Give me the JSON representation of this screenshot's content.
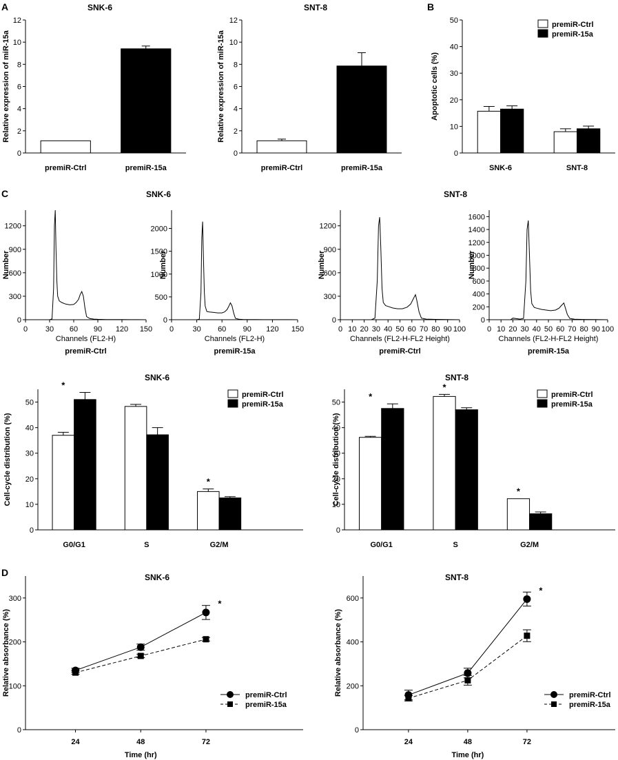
{
  "figure": {
    "panel_letters": [
      "A",
      "B",
      "C",
      "D"
    ],
    "series_colors": {
      "premiR-Ctrl": "#ffffff",
      "premiR-15a": "#000000"
    }
  },
  "chart_data": [
    {
      "id": "A1",
      "type": "bar",
      "title": "SNK-6",
      "ylabel": "Relative expression of miR-15a",
      "xlabel": "",
      "ylim": [
        0,
        12
      ],
      "yticks": [
        0,
        2,
        4,
        6,
        8,
        10,
        12
      ],
      "categories": [
        "premiR-Ctrl",
        "premiR-15a"
      ],
      "values": [
        1.1,
        9.4
      ],
      "errors": [
        0,
        0.25
      ],
      "colors": [
        "#ffffff",
        "#000000"
      ]
    },
    {
      "id": "A2",
      "type": "bar",
      "title": "SNT-8",
      "ylabel": "Relative expression of miR-15a",
      "xlabel": "",
      "ylim": [
        0,
        12
      ],
      "yticks": [
        0,
        2,
        4,
        6,
        8,
        10,
        12
      ],
      "categories": [
        "premiR-Ctrl",
        "premiR-15a"
      ],
      "values": [
        1.1,
        7.85
      ],
      "errors": [
        0.15,
        1.2
      ],
      "colors": [
        "#ffffff",
        "#000000"
      ]
    },
    {
      "id": "B",
      "type": "bar",
      "title": "",
      "ylabel": "Apoptotic cells (%)",
      "xlabel": "",
      "ylim": [
        0,
        50
      ],
      "yticks": [
        0,
        10,
        20,
        30,
        40,
        50
      ],
      "categories": [
        "SNK-6",
        "SNT-8"
      ],
      "series": [
        {
          "name": "premiR-Ctrl",
          "values": [
            15.7,
            8.0
          ],
          "errors": [
            1.8,
            1.1
          ]
        },
        {
          "name": "premiR-15a",
          "values": [
            16.5,
            9.1
          ],
          "errors": [
            1.2,
            1.0
          ]
        }
      ],
      "legend": "top-right"
    },
    {
      "id": "C1",
      "type": "line",
      "group_title": "SNK-6",
      "ylabel": "Number",
      "xlabel": "Channels (FL2-H)",
      "caption": "premiR-Ctrl",
      "xlim": [
        0,
        150
      ],
      "xticks": [
        0,
        30,
        60,
        90,
        120,
        150
      ],
      "ylim": [
        0,
        1400
      ],
      "yticks": [
        0,
        300,
        600,
        900,
        1200
      ],
      "x": [
        30,
        33,
        35,
        36,
        37,
        38,
        39,
        40,
        42,
        45,
        50,
        55,
        60,
        63,
        66,
        68,
        70,
        72,
        74,
        76,
        80,
        85,
        90,
        100,
        110,
        120,
        130,
        140,
        150
      ],
      "y": [
        0,
        10,
        400,
        1200,
        1400,
        900,
        500,
        300,
        240,
        220,
        200,
        190,
        195,
        220,
        260,
        320,
        360,
        300,
        150,
        40,
        15,
        8,
        5,
        3,
        2,
        2,
        1,
        1,
        0
      ]
    },
    {
      "id": "C2",
      "type": "line",
      "group_title": "SNK-6",
      "ylabel": "Number",
      "xlabel": "Channels (FL2-H)",
      "caption": "premiR-15a",
      "xlim": [
        0,
        150
      ],
      "xticks": [
        0,
        30,
        60,
        90,
        120,
        150
      ],
      "ylim": [
        0,
        2400
      ],
      "yticks": [
        0,
        500,
        1000,
        1500,
        2000
      ],
      "x": [
        30,
        33,
        35,
        36,
        37,
        38,
        39,
        40,
        42,
        45,
        50,
        55,
        60,
        63,
        66,
        68,
        70,
        72,
        74,
        76,
        80,
        85,
        90,
        100,
        110,
        120,
        130,
        140,
        150
      ],
      "y": [
        0,
        10,
        600,
        1800,
        2150,
        1300,
        600,
        300,
        180,
        170,
        160,
        150,
        150,
        170,
        220,
        290,
        370,
        300,
        140,
        30,
        12,
        6,
        4,
        3,
        2,
        2,
        1,
        1,
        0
      ]
    },
    {
      "id": "C3",
      "type": "line",
      "group_title": "SNT-8",
      "ylabel": "Number",
      "xlabel": "Channels (FL2-H-FL2 Height)",
      "caption": "premiR-Ctrl",
      "xlim": [
        0,
        100
      ],
      "xticks": [
        0,
        10,
        20,
        30,
        40,
        50,
        60,
        70,
        80,
        90,
        100
      ],
      "ylim": [
        0,
        1400
      ],
      "yticks": [
        0,
        300,
        600,
        900,
        1200
      ],
      "x": [
        26,
        29,
        31,
        32,
        33,
        34,
        35,
        36,
        38,
        40,
        44,
        48,
        52,
        56,
        59,
        61,
        63,
        64,
        66,
        68,
        72,
        80,
        90,
        100
      ],
      "y": [
        0,
        20,
        500,
        1200,
        1310,
        900,
        400,
        220,
        180,
        170,
        150,
        140,
        140,
        160,
        200,
        260,
        320,
        260,
        100,
        20,
        8,
        4,
        2,
        0
      ]
    },
    {
      "id": "C4",
      "type": "line",
      "group_title": "SNT-8",
      "ylabel": "Number",
      "xlabel": "Channels (FL2-H-FL2 Height)",
      "caption": "premiR-15a",
      "xlim": [
        0,
        100
      ],
      "xticks": [
        0,
        10,
        20,
        30,
        40,
        50,
        60,
        70,
        80,
        90,
        100
      ],
      "ylim": [
        0,
        1700
      ],
      "yticks": [
        0,
        200,
        400,
        600,
        800,
        1000,
        1200,
        1400,
        1600
      ],
      "x": [
        18,
        20,
        26,
        29,
        31,
        32,
        33,
        34,
        35,
        36,
        38,
        40,
        44,
        48,
        52,
        56,
        59,
        61,
        63,
        64,
        66,
        68,
        72,
        80,
        90,
        100
      ],
      "y": [
        0,
        25,
        10,
        20,
        600,
        1400,
        1540,
        1000,
        450,
        250,
        190,
        180,
        160,
        150,
        140,
        150,
        180,
        220,
        260,
        200,
        80,
        20,
        8,
        4,
        2,
        0
      ]
    },
    {
      "id": "C5",
      "type": "bar",
      "title": "SNK-6",
      "ylabel": "Cell-cycle distribution (%)",
      "xlabel": "",
      "ylim": [
        0,
        55
      ],
      "yticks": [
        0,
        10,
        20,
        30,
        40,
        50
      ],
      "categories": [
        "G0/G1",
        "S",
        "G2/M"
      ],
      "series": [
        {
          "name": "premiR-Ctrl",
          "values": [
            37.0,
            48.3,
            15.0
          ],
          "errors": [
            1.2,
            0.8,
            1.0
          ]
        },
        {
          "name": "premiR-15a",
          "values": [
            51.0,
            37.2,
            12.5
          ],
          "errors": [
            2.8,
            2.8,
            0.5
          ]
        }
      ],
      "significance": [
        "*",
        "",
        "*"
      ],
      "legend": "top-right"
    },
    {
      "id": "C6",
      "type": "bar",
      "title": "SNT-8",
      "ylabel": "Cell-cycle distribution (%)",
      "xlabel": "",
      "ylim": [
        0,
        55
      ],
      "yticks": [
        0,
        10,
        20,
        30,
        40,
        50
      ],
      "categories": [
        "G0/G1",
        "S",
        "G2/M"
      ],
      "series": [
        {
          "name": "premiR-Ctrl",
          "values": [
            36.2,
            52.2,
            12.2
          ],
          "errors": [
            0.4,
            0.8,
            0
          ]
        },
        {
          "name": "premiR-15a",
          "values": [
            47.5,
            47.0,
            6.3
          ],
          "errors": [
            1.8,
            0.8,
            0.7
          ]
        }
      ],
      "significance": [
        "*",
        "*",
        "*"
      ],
      "legend": "top-right"
    },
    {
      "id": "D1",
      "type": "line",
      "title": "SNK-6",
      "ylabel": "Relative absorbance (%)",
      "xlabel": "Time (hr)",
      "ylim": [
        0,
        350
      ],
      "yticks": [
        0,
        100,
        200,
        300
      ],
      "categories": [
        "24",
        "48",
        "72"
      ],
      "series": [
        {
          "name": "premiR-Ctrl",
          "values": [
            135,
            188,
            267
          ],
          "errors": [
            5,
            7,
            16
          ]
        },
        {
          "name": "premiR-15a",
          "values": [
            130,
            168,
            206
          ],
          "errors": [
            4,
            4,
            4
          ]
        }
      ],
      "significance": [
        "",
        "",
        "*"
      ],
      "legend": "bottom-right"
    },
    {
      "id": "D2",
      "type": "line",
      "title": "SNT-8",
      "ylabel": "Relative absorbance (%)",
      "xlabel": "Time (hr)",
      "ylim": [
        0,
        700
      ],
      "yticks": [
        0,
        200,
        400,
        600
      ],
      "categories": [
        "24",
        "48",
        "72"
      ],
      "series": [
        {
          "name": "premiR-Ctrl",
          "values": [
            158,
            258,
            595
          ],
          "errors": [
            22,
            22,
            32
          ]
        },
        {
          "name": "premiR-15a",
          "values": [
            143,
            225,
            428
          ],
          "errors": [
            12,
            22,
            27
          ]
        }
      ],
      "significance": [
        "",
        "",
        "*"
      ],
      "legend": "bottom-right"
    }
  ]
}
